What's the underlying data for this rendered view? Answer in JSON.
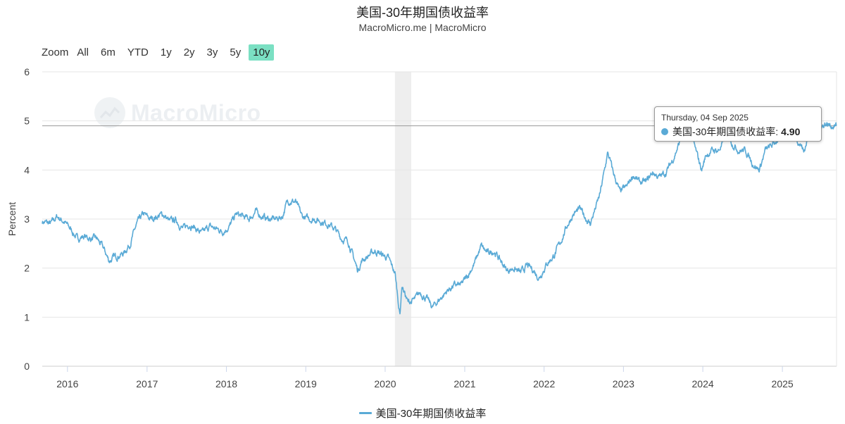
{
  "title": "美国-30年期国债收益率",
  "subtitle": "MacroMicro.me | MacroMicro",
  "watermark": "MacroMicro",
  "zoom": {
    "label": "Zoom",
    "options": [
      "All",
      "6m",
      "YTD",
      "1y",
      "2y",
      "3y",
      "5y",
      "10y"
    ],
    "selected": "10y"
  },
  "tooltip": {
    "date": "Thursday, 04 Sep 2025",
    "series": "美国-30年期国债收益率:",
    "value": "4.90"
  },
  "colors": {
    "series": "#5aaad6",
    "zoom_active": "#7be0c3",
    "shade": "#eeeeee"
  },
  "chart_data": {
    "type": "line",
    "ylabel": "Percent",
    "ylim": [
      0,
      6
    ],
    "yticks": [
      0,
      1,
      2,
      3,
      4,
      5,
      6
    ],
    "xlim": [
      "2015-09-07",
      "2025-09-07"
    ],
    "xticks": [
      "2016",
      "2017",
      "2018",
      "2019",
      "2020",
      "2021",
      "2022",
      "2023",
      "2024",
      "2025"
    ],
    "grid": true,
    "legend": "bottom",
    "shaded_region": [
      "2020-02-15",
      "2020-04-30"
    ],
    "reference_line": 4.9,
    "series": [
      {
        "name": "美国-30年期国债收益率",
        "x": [
          "2015-09-07",
          "2015-10-15",
          "2015-11-15",
          "2015-12-15",
          "2016-01-15",
          "2016-02-15",
          "2016-03-15",
          "2016-04-15",
          "2016-05-15",
          "2016-06-15",
          "2016-07-10",
          "2016-08-15",
          "2016-09-15",
          "2016-10-15",
          "2016-11-15",
          "2016-12-15",
          "2017-01-15",
          "2017-02-15",
          "2017-03-15",
          "2017-04-15",
          "2017-05-15",
          "2017-06-15",
          "2017-07-15",
          "2017-08-15",
          "2017-09-10",
          "2017-10-15",
          "2017-11-15",
          "2017-12-15",
          "2018-01-15",
          "2018-02-15",
          "2018-03-15",
          "2018-04-15",
          "2018-05-15",
          "2018-06-15",
          "2018-07-15",
          "2018-08-15",
          "2018-09-15",
          "2018-10-10",
          "2018-11-15",
          "2018-12-15",
          "2019-01-15",
          "2019-02-15",
          "2019-03-15",
          "2019-04-15",
          "2019-05-15",
          "2019-06-15",
          "2019-07-15",
          "2019-08-28",
          "2019-09-15",
          "2019-10-15",
          "2019-11-15",
          "2019-12-15",
          "2020-01-15",
          "2020-02-15",
          "2020-03-09",
          "2020-03-18",
          "2020-04-15",
          "2020-05-15",
          "2020-06-10",
          "2020-07-15",
          "2020-08-05",
          "2020-09-15",
          "2020-10-15",
          "2020-11-15",
          "2020-12-15",
          "2021-01-15",
          "2021-02-15",
          "2021-03-18",
          "2021-04-15",
          "2021-05-15",
          "2021-06-15",
          "2021-07-15",
          "2021-08-15",
          "2021-09-15",
          "2021-10-15",
          "2021-11-15",
          "2021-12-08",
          "2022-01-15",
          "2022-02-15",
          "2022-03-15",
          "2022-04-15",
          "2022-05-15",
          "2022-06-15",
          "2022-07-15",
          "2022-08-01",
          "2022-09-15",
          "2022-10-21",
          "2022-11-15",
          "2022-12-15",
          "2023-01-15",
          "2023-02-15",
          "2023-03-15",
          "2023-04-15",
          "2023-05-15",
          "2023-06-15",
          "2023-07-15",
          "2023-08-15",
          "2023-09-15",
          "2023-10-19",
          "2023-11-15",
          "2023-12-27",
          "2024-01-15",
          "2024-02-15",
          "2024-03-15",
          "2024-04-25",
          "2024-05-15",
          "2024-06-15",
          "2024-07-15",
          "2024-08-15",
          "2024-09-16",
          "2024-10-15",
          "2024-11-15",
          "2024-12-15",
          "2025-01-14",
          "2025-02-15",
          "2025-03-15",
          "2025-04-04",
          "2025-04-09",
          "2025-05-21",
          "2025-06-15",
          "2025-07-15",
          "2025-08-15",
          "2025-09-04",
          "2025-09-07"
        ],
        "values": [
          2.95,
          2.9,
          3.05,
          2.95,
          2.8,
          2.6,
          2.65,
          2.6,
          2.6,
          2.4,
          2.15,
          2.25,
          2.3,
          2.5,
          2.9,
          3.1,
          3.0,
          3.05,
          3.1,
          2.95,
          2.98,
          2.8,
          2.9,
          2.8,
          2.7,
          2.85,
          2.8,
          2.75,
          2.85,
          3.1,
          3.05,
          3.0,
          3.15,
          3.05,
          3.0,
          3.0,
          3.05,
          3.38,
          3.35,
          3.05,
          3.0,
          3.0,
          2.95,
          2.9,
          2.8,
          2.6,
          2.55,
          1.95,
          2.15,
          2.25,
          2.35,
          2.28,
          2.2,
          1.9,
          1.05,
          1.65,
          1.3,
          1.35,
          1.5,
          1.35,
          1.2,
          1.4,
          1.55,
          1.65,
          1.65,
          1.85,
          2.1,
          2.45,
          2.3,
          2.35,
          2.15,
          1.95,
          2.0,
          1.9,
          2.05,
          1.95,
          1.8,
          2.1,
          2.25,
          2.5,
          2.85,
          3.1,
          3.2,
          3.0,
          2.9,
          3.5,
          4.35,
          3.95,
          3.55,
          3.65,
          3.9,
          3.75,
          3.75,
          3.95,
          3.85,
          3.95,
          4.2,
          4.55,
          5.05,
          4.6,
          4.0,
          4.3,
          4.4,
          4.4,
          4.75,
          4.55,
          4.4,
          4.4,
          4.15,
          4.0,
          4.4,
          4.5,
          4.65,
          4.95,
          4.7,
          4.6,
          4.45,
          4.35,
          5.05,
          4.8,
          4.95,
          4.9,
          4.9,
          4.92
        ]
      }
    ]
  }
}
